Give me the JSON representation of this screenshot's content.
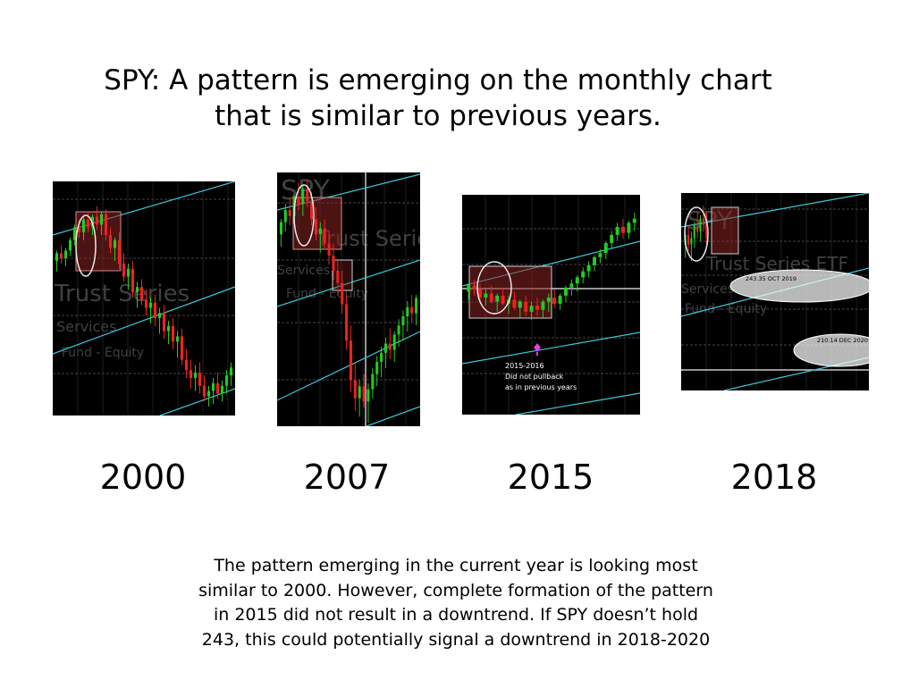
{
  "slide": {
    "title_lines": [
      "SPY: A pattern is emerging on the monthly chart",
      "that is similar to previous years."
    ],
    "caption_lines": [
      "The pattern emerging in the current year is looking most",
      "similar to 2000. However, complete formation of the pattern",
      "in 2015 did not result in a downtrend. If SPY doesn’t hold",
      "243, this could potentially signal a downtrend in 2018-2020"
    ]
  },
  "chart_data": [
    {
      "type": "candlestick",
      "title": "2000",
      "watermark": [
        "Trust Series",
        "Services",
        "Fund - Equity"
      ],
      "ohlc": [
        [
          100,
          104,
          96,
          103
        ],
        [
          103,
          106,
          99,
          101
        ],
        [
          101,
          105,
          98,
          104
        ],
        [
          104,
          109,
          102,
          108
        ],
        [
          108,
          114,
          106,
          113
        ],
        [
          113,
          116,
          109,
          111
        ],
        [
          111,
          117,
          108,
          116
        ],
        [
          116,
          119,
          111,
          113
        ],
        [
          113,
          118,
          110,
          117
        ],
        [
          117,
          121,
          112,
          114
        ],
        [
          114,
          119,
          110,
          118
        ],
        [
          118,
          120,
          108,
          110
        ],
        [
          110,
          113,
          103,
          105
        ],
        [
          105,
          109,
          100,
          108
        ],
        [
          108,
          111,
          97,
          99
        ],
        [
          99,
          103,
          92,
          94
        ],
        [
          94,
          99,
          89,
          97
        ],
        [
          97,
          100,
          86,
          88
        ],
        [
          88,
          92,
          82,
          90
        ],
        [
          90,
          93,
          83,
          85
        ],
        [
          85,
          89,
          79,
          82
        ],
        [
          82,
          86,
          76,
          84
        ],
        [
          84,
          87,
          75,
          78
        ],
        [
          78,
          82,
          72,
          80
        ],
        [
          80,
          83,
          70,
          73
        ],
        [
          73,
          77,
          68,
          75
        ],
        [
          75,
          78,
          66,
          69
        ],
        [
          69,
          73,
          63,
          71
        ],
        [
          71,
          74,
          60,
          62
        ],
        [
          62,
          66,
          55,
          58
        ],
        [
          58,
          62,
          51,
          55
        ],
        [
          55,
          60,
          50,
          57
        ],
        [
          57,
          61,
          49,
          52
        ],
        [
          52,
          56,
          46,
          48
        ],
        [
          48,
          52,
          44,
          50
        ],
        [
          50,
          55,
          45,
          53
        ],
        [
          53,
          57,
          47,
          49
        ],
        [
          49,
          54,
          46,
          52
        ],
        [
          52,
          58,
          49,
          56
        ],
        [
          56,
          61,
          52,
          59
        ]
      ]
    },
    {
      "type": "candlestick",
      "title": "2007",
      "watermark": [
        "SPY",
        "Trust Series",
        "Services",
        "Fund - Equity"
      ],
      "ohlc": [
        [
          100,
          105,
          96,
          104
        ],
        [
          104,
          110,
          101,
          108
        ],
        [
          108,
          112,
          103,
          106
        ],
        [
          106,
          113,
          104,
          112
        ],
        [
          112,
          117,
          108,
          110
        ],
        [
          110,
          116,
          106,
          115
        ],
        [
          115,
          118,
          109,
          111
        ],
        [
          111,
          114,
          103,
          105
        ],
        [
          105,
          109,
          98,
          100
        ],
        [
          100,
          104,
          94,
          102
        ],
        [
          102,
          105,
          95,
          97
        ],
        [
          97,
          101,
          90,
          93
        ],
        [
          93,
          97,
          85,
          88
        ],
        [
          88,
          92,
          80,
          84
        ],
        [
          84,
          88,
          74,
          77
        ],
        [
          77,
          80,
          62,
          65
        ],
        [
          65,
          70,
          48,
          52
        ],
        [
          52,
          58,
          42,
          46
        ],
        [
          46,
          52,
          40,
          50
        ],
        [
          50,
          54,
          43,
          45
        ],
        [
          45,
          51,
          38,
          49
        ],
        [
          49,
          56,
          46,
          54
        ],
        [
          54,
          60,
          50,
          58
        ],
        [
          58,
          63,
          53,
          61
        ],
        [
          61,
          66,
          56,
          64
        ],
        [
          64,
          69,
          59,
          62
        ],
        [
          62,
          68,
          58,
          67
        ],
        [
          67,
          72,
          63,
          70
        ],
        [
          70,
          75,
          65,
          73
        ],
        [
          73,
          78,
          68,
          76
        ],
        [
          76,
          80,
          71,
          74
        ],
        [
          74,
          80,
          70,
          79
        ]
      ]
    },
    {
      "type": "candlestick",
      "title": "2015",
      "annotations": [
        "2015-2016",
        "Did not pullback",
        "as in previous years"
      ],
      "ohlc": [
        [
          100,
          104,
          96,
          103
        ],
        [
          103,
          106,
          98,
          101
        ],
        [
          101,
          104,
          95,
          97
        ],
        [
          97,
          101,
          93,
          99
        ],
        [
          99,
          103,
          94,
          95
        ],
        [
          95,
          99,
          90,
          98
        ],
        [
          98,
          102,
          93,
          94
        ],
        [
          94,
          98,
          89,
          96
        ],
        [
          96,
          100,
          91,
          92
        ],
        [
          92,
          96,
          87,
          95
        ],
        [
          95,
          98,
          88,
          90
        ],
        [
          90,
          95,
          86,
          93
        ],
        [
          93,
          97,
          88,
          91
        ],
        [
          91,
          96,
          87,
          95
        ],
        [
          95,
          99,
          90,
          97
        ],
        [
          97,
          101,
          92,
          94
        ],
        [
          94,
          99,
          91,
          98
        ],
        [
          98,
          103,
          95,
          102
        ],
        [
          102,
          106,
          98,
          104
        ],
        [
          104,
          108,
          100,
          107
        ],
        [
          107,
          112,
          104,
          110
        ],
        [
          110,
          115,
          107,
          113
        ],
        [
          113,
          118,
          110,
          117
        ],
        [
          117,
          121,
          114,
          119
        ],
        [
          119,
          125,
          116,
          124
        ],
        [
          124,
          130,
          121,
          128
        ],
        [
          128,
          134,
          125,
          132
        ],
        [
          132,
          136,
          126,
          129
        ],
        [
          129,
          135,
          126,
          134
        ],
        [
          134,
          139,
          130,
          136
        ]
      ]
    },
    {
      "type": "candlestick",
      "title": "2018",
      "watermark": [
        "SPY",
        "Trust Series ETF",
        "Services",
        "Fund - Equity"
      ],
      "annotations": [
        "243.35 OCT 2019",
        "210.14 DEC 2020"
      ],
      "ohlc": [
        [
          100,
          104,
          96,
          103
        ],
        [
          103,
          106,
          98,
          100
        ],
        [
          100,
          104,
          95,
          102
        ],
        [
          102,
          107,
          99,
          106
        ],
        [
          106,
          110,
          102,
          104
        ],
        [
          104,
          109,
          101,
          108
        ],
        [
          108,
          112,
          104,
          106
        ],
        [
          106,
          110,
          100,
          102
        ]
      ]
    }
  ]
}
